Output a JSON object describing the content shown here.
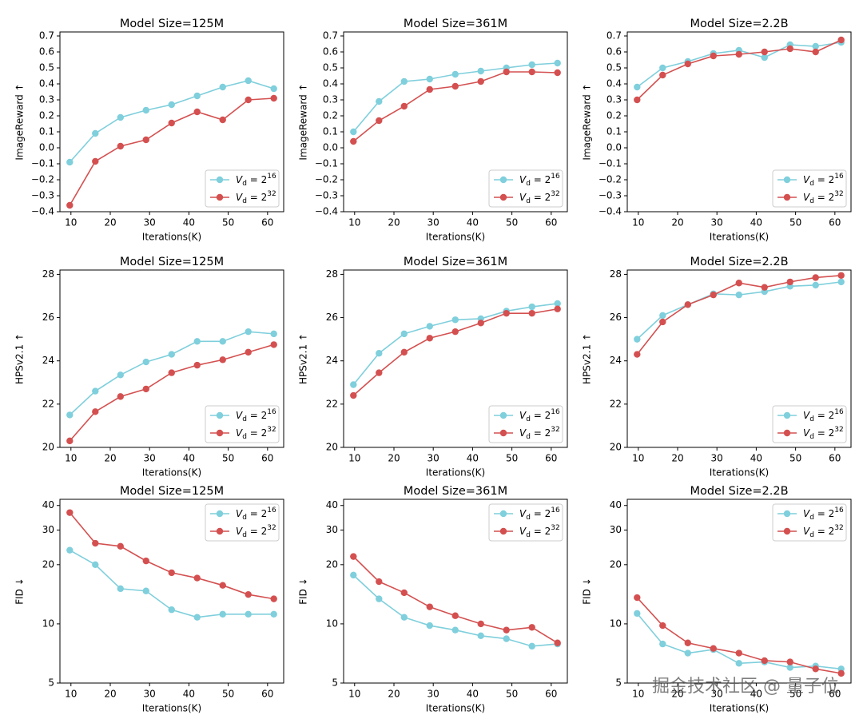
{
  "chart_data": [
    {
      "type": "line",
      "title": "Model Size=125M",
      "xlabel": "Iterations(K)",
      "ylabel": "ImageReward ↑",
      "legend": "lower right",
      "x": [
        9.7,
        16.2,
        22.6,
        29.1,
        35.6,
        42.1,
        48.6,
        55.1,
        61.6
      ],
      "xlim": [
        7.2,
        64.1
      ],
      "xticks": [
        10,
        20,
        30,
        40,
        50,
        60
      ],
      "ylim": [
        -0.4,
        0.725
      ],
      "yticks": [
        {
          "value": -0.4,
          "label": "−0.4"
        },
        {
          "value": -0.3,
          "label": "−0.3"
        },
        {
          "value": -0.2,
          "label": "−0.2"
        },
        {
          "value": -0.1,
          "label": "−0.1"
        },
        {
          "value": 0,
          "label": "0.0"
        },
        0.1,
        0.2,
        0.3,
        0.4,
        0.5,
        0.6,
        0.7
      ],
      "series": [
        {
          "name": "V_d = 2^16",
          "color": "#7fcfdc",
          "values": [
            -0.09,
            0.09,
            0.19,
            0.235,
            0.27,
            0.325,
            0.38,
            0.42,
            0.37
          ]
        },
        {
          "name": "V_d = 2^32",
          "color": "#d45050",
          "values": [
            -0.36,
            -0.085,
            0.01,
            0.05,
            0.155,
            0.225,
            0.175,
            0.3,
            0.31
          ]
        }
      ]
    },
    {
      "type": "line",
      "title": "Model Size=361M",
      "xlabel": "Iterations(K)",
      "ylabel": "ImageReward ↑",
      "legend": "lower right",
      "x": [
        9.7,
        16.2,
        22.6,
        29.1,
        35.6,
        42.1,
        48.6,
        55.1,
        61.6
      ],
      "xlim": [
        7.2,
        64.1
      ],
      "xticks": [
        10,
        20,
        30,
        40,
        50,
        60
      ],
      "ylim": [
        -0.4,
        0.725
      ],
      "yticks": [
        {
          "value": -0.4,
          "label": "−0.4"
        },
        {
          "value": -0.3,
          "label": "−0.3"
        },
        {
          "value": -0.2,
          "label": "−0.2"
        },
        {
          "value": -0.1,
          "label": "−0.1"
        },
        {
          "value": 0,
          "label": "0.0"
        },
        0.1,
        0.2,
        0.3,
        0.4,
        0.5,
        0.6,
        0.7
      ],
      "series": [
        {
          "name": "V_d = 2^16",
          "color": "#7fcfdc",
          "values": [
            0.1,
            0.29,
            0.415,
            0.43,
            0.46,
            0.48,
            0.5,
            0.52,
            0.53
          ]
        },
        {
          "name": "V_d = 2^32",
          "color": "#d45050",
          "values": [
            0.04,
            0.17,
            0.26,
            0.365,
            0.385,
            0.415,
            0.475,
            0.475,
            0.47
          ]
        }
      ]
    },
    {
      "type": "line",
      "title": "Model Size=2.2B",
      "xlabel": "Iterations(K)",
      "ylabel": "ImageReward ↑",
      "legend": "lower right",
      "x": [
        9.7,
        16.2,
        22.6,
        29.1,
        35.6,
        42.1,
        48.6,
        55.1,
        61.6
      ],
      "xlim": [
        7.2,
        64.1
      ],
      "xticks": [
        10,
        20,
        30,
        40,
        50,
        60
      ],
      "ylim": [
        -0.4,
        0.725
      ],
      "yticks": [
        {
          "value": -0.4,
          "label": "−0.4"
        },
        {
          "value": -0.3,
          "label": "−0.3"
        },
        {
          "value": -0.2,
          "label": "−0.2"
        },
        {
          "value": -0.1,
          "label": "−0.1"
        },
        {
          "value": 0,
          "label": "0.0"
        },
        0.1,
        0.2,
        0.3,
        0.4,
        0.5,
        0.6,
        0.7
      ],
      "series": [
        {
          "name": "V_d = 2^16",
          "color": "#7fcfdc",
          "values": [
            0.38,
            0.5,
            0.54,
            0.59,
            0.61,
            0.565,
            0.645,
            0.635,
            0.66
          ]
        },
        {
          "name": "V_d = 2^32",
          "color": "#d45050",
          "values": [
            0.3,
            0.455,
            0.525,
            0.575,
            0.585,
            0.6,
            0.62,
            0.6,
            0.675
          ]
        }
      ]
    },
    {
      "type": "line",
      "title": "Model Size=125M",
      "xlabel": "Iterations(K)",
      "ylabel": "HPSv2.1 ↑",
      "legend": "lower right",
      "x": [
        9.7,
        16.2,
        22.6,
        29.1,
        35.6,
        42.1,
        48.6,
        55.1,
        61.6
      ],
      "xlim": [
        7.2,
        64.1
      ],
      "xticks": [
        10,
        20,
        30,
        40,
        50,
        60
      ],
      "ylim": [
        20,
        28.2
      ],
      "yticks": [
        20,
        22,
        24,
        26,
        28
      ],
      "series": [
        {
          "name": "V_d = 2^16",
          "color": "#7fcfdc",
          "values": [
            21.5,
            22.6,
            23.35,
            23.95,
            24.3,
            24.9,
            24.9,
            25.35,
            25.25
          ]
        },
        {
          "name": "V_d = 2^32",
          "color": "#d45050",
          "values": [
            20.3,
            21.65,
            22.35,
            22.7,
            23.45,
            23.8,
            24.05,
            24.4,
            24.75
          ]
        }
      ]
    },
    {
      "type": "line",
      "title": "Model Size=361M",
      "xlabel": "Iterations(K)",
      "ylabel": "HPSv2.1 ↑",
      "legend": "lower right",
      "x": [
        9.7,
        16.2,
        22.6,
        29.1,
        35.6,
        42.1,
        48.6,
        55.1,
        61.6
      ],
      "xlim": [
        7.2,
        64.1
      ],
      "xticks": [
        10,
        20,
        30,
        40,
        50,
        60
      ],
      "ylim": [
        20,
        28.2
      ],
      "yticks": [
        20,
        22,
        24,
        26,
        28
      ],
      "series": [
        {
          "name": "V_d = 2^16",
          "color": "#7fcfdc",
          "values": [
            22.9,
            24.35,
            25.25,
            25.6,
            25.9,
            25.95,
            26.3,
            26.5,
            26.65
          ]
        },
        {
          "name": "V_d = 2^32",
          "color": "#d45050",
          "values": [
            22.4,
            23.45,
            24.4,
            25.05,
            25.35,
            25.75,
            26.2,
            26.2,
            26.4
          ]
        }
      ]
    },
    {
      "type": "line",
      "title": "Model Size=2.2B",
      "xlabel": "Iterations(K)",
      "ylabel": "HPSv2.1 ↑",
      "legend": "lower right",
      "x": [
        9.7,
        16.2,
        22.6,
        29.1,
        35.6,
        42.1,
        48.6,
        55.1,
        61.6
      ],
      "xlim": [
        7.2,
        64.1
      ],
      "xticks": [
        10,
        20,
        30,
        40,
        50,
        60
      ],
      "ylim": [
        20,
        28.2
      ],
      "yticks": [
        20,
        22,
        24,
        26,
        28
      ],
      "series": [
        {
          "name": "V_d = 2^16",
          "color": "#7fcfdc",
          "values": [
            25.0,
            26.1,
            26.6,
            27.1,
            27.05,
            27.2,
            27.45,
            27.5,
            27.65
          ]
        },
        {
          "name": "V_d = 2^32",
          "color": "#d45050",
          "values": [
            24.3,
            25.8,
            26.6,
            27.05,
            27.6,
            27.4,
            27.65,
            27.85,
            27.95
          ]
        }
      ]
    },
    {
      "type": "line",
      "title": "Model Size=125M",
      "xlabel": "Iterations(K)",
      "ylabel": "FID ↓",
      "legend": "upper right",
      "ylog": true,
      "x": [
        9.7,
        16.2,
        22.6,
        29.1,
        35.6,
        42.1,
        48.6,
        55.1,
        61.6
      ],
      "xlim": [
        7.2,
        64.1
      ],
      "xticks": [
        10,
        20,
        30,
        40,
        50,
        60
      ],
      "ylim": [
        5,
        43
      ],
      "yticks": [
        5,
        10,
        20,
        30,
        40
      ],
      "series": [
        {
          "name": "V_d = 2^16",
          "color": "#7fcfdc",
          "values": [
            23.7,
            20,
            15.1,
            14.7,
            11.8,
            10.8,
            11.2,
            11.2,
            11.2
          ]
        },
        {
          "name": "V_d = 2^32",
          "color": "#d45050",
          "values": [
            36.8,
            25.7,
            24.8,
            20.9,
            18.2,
            17.1,
            15.7,
            14.1,
            13.4
          ]
        }
      ]
    },
    {
      "type": "line",
      "title": "Model Size=361M",
      "xlabel": "Iterations(K)",
      "ylabel": "FID ↓",
      "legend": "upper right",
      "ylog": true,
      "x": [
        9.7,
        16.2,
        22.6,
        29.1,
        35.6,
        42.1,
        48.6,
        55.1,
        61.6
      ],
      "xlim": [
        7.2,
        64.1
      ],
      "xticks": [
        10,
        20,
        30,
        40,
        50,
        60
      ],
      "ylim": [
        5,
        43
      ],
      "yticks": [
        5,
        10,
        20,
        30,
        40
      ],
      "series": [
        {
          "name": "V_d = 2^16",
          "color": "#7fcfdc",
          "values": [
            17.7,
            13.4,
            10.8,
            9.8,
            9.3,
            8.7,
            8.4,
            7.7,
            7.9
          ]
        },
        {
          "name": "V_d = 2^32",
          "color": "#d45050",
          "values": [
            22.0,
            16.4,
            14.4,
            12.2,
            11.0,
            10.0,
            9.3,
            9.6,
            8.0
          ]
        }
      ]
    },
    {
      "type": "line",
      "title": "Model Size=2.2B",
      "xlabel": "Iterations(K)",
      "ylabel": "FID ↓",
      "legend": "upper right",
      "ylog": true,
      "x": [
        9.7,
        16.2,
        22.6,
        29.1,
        35.6,
        42.1,
        48.6,
        55.1,
        61.6
      ],
      "xlim": [
        7.2,
        64.1
      ],
      "xticks": [
        10,
        20,
        30,
        40,
        50,
        60
      ],
      "ylim": [
        5,
        43
      ],
      "yticks": [
        5,
        10,
        20,
        30,
        40
      ],
      "series": [
        {
          "name": "V_d = 2^16",
          "color": "#7fcfdc",
          "values": [
            11.3,
            7.9,
            7.1,
            7.4,
            6.3,
            6.4,
            6.0,
            6.1,
            5.9
          ]
        },
        {
          "name": "V_d = 2^32",
          "color": "#d45050",
          "values": [
            13.6,
            9.8,
            8.0,
            7.5,
            7.1,
            6.5,
            6.4,
            5.9,
            5.6
          ]
        }
      ]
    }
  ],
  "watermark": "掘金技术社区 @ 量子位"
}
